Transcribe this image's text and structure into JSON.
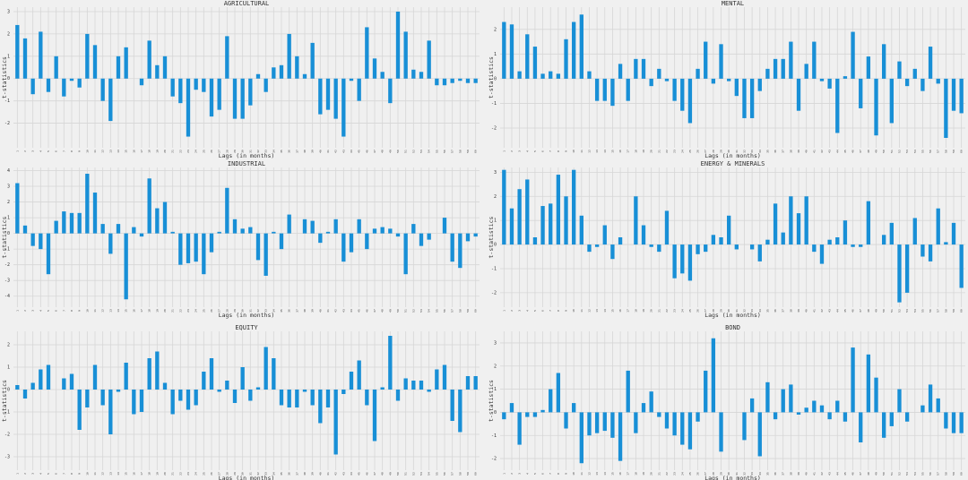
{
  "chart_data": [
    {
      "type": "bar",
      "title": "AGRICULTURAL",
      "xlabel": "Lags (in months)",
      "ylabel": "t-statistics",
      "color": "#188fd6",
      "grid": true,
      "categories": [
        1,
        2,
        3,
        4,
        5,
        6,
        7,
        8,
        9,
        10,
        11,
        12,
        13,
        14,
        15,
        16,
        17,
        18,
        19,
        20,
        21,
        22,
        23,
        24,
        25,
        26,
        27,
        28,
        29,
        30,
        31,
        32,
        33,
        34,
        35,
        36,
        37,
        38,
        39,
        40,
        41,
        42,
        43,
        44,
        45,
        46,
        47,
        48,
        49,
        50,
        51,
        52,
        53,
        54,
        55,
        56,
        57,
        58,
        59,
        60
      ],
      "values": [
        2.4,
        1.8,
        -0.7,
        2.1,
        -0.6,
        1.0,
        -0.8,
        -0.1,
        -0.4,
        2.0,
        1.5,
        -1.0,
        -1.9,
        1.0,
        1.4,
        0.0,
        -0.3,
        1.7,
        0.6,
        1.0,
        -0.8,
        -1.1,
        -2.6,
        -0.5,
        -0.6,
        -1.7,
        -1.4,
        1.9,
        -1.8,
        -1.8,
        -1.2,
        0.2,
        -0.6,
        0.5,
        0.6,
        2.0,
        1.0,
        0.2,
        1.6,
        -1.6,
        -1.4,
        -1.8,
        -2.6,
        -0.1,
        -1.0,
        2.3,
        0.9,
        0.3,
        -1.1,
        3.0,
        2.1,
        0.4,
        0.3,
        1.7,
        -0.3,
        -0.3,
        -0.2,
        -0.1,
        -0.2,
        -0.2
      ],
      "ylim": [
        -3.1,
        3.2
      ],
      "yticks": [
        -2,
        -1,
        0,
        1,
        2,
        3
      ]
    },
    {
      "type": "bar",
      "title": "MENTAL",
      "xlabel": "Lags (in months)",
      "ylabel": "t-statistics",
      "color": "#188fd6",
      "grid": true,
      "categories": [
        1,
        2,
        3,
        4,
        5,
        6,
        7,
        8,
        9,
        10,
        11,
        12,
        13,
        14,
        15,
        16,
        17,
        18,
        19,
        20,
        21,
        22,
        23,
        24,
        25,
        26,
        27,
        28,
        29,
        30,
        31,
        32,
        33,
        34,
        35,
        36,
        37,
        38,
        39,
        40,
        41,
        42,
        43,
        44,
        45,
        46,
        47,
        48,
        49,
        50,
        51,
        52,
        53,
        54,
        55,
        56,
        57,
        58,
        59,
        60
      ],
      "values": [
        2.3,
        2.2,
        0.3,
        1.8,
        1.3,
        0.2,
        0.3,
        0.2,
        1.6,
        2.3,
        2.6,
        0.3,
        -0.9,
        -0.9,
        -1.1,
        0.6,
        -0.9,
        0.8,
        0.8,
        -0.3,
        0.4,
        -0.1,
        -0.9,
        -1.3,
        -1.8,
        0.4,
        1.5,
        -0.2,
        1.4,
        -0.1,
        -0.7,
        -1.6,
        -1.6,
        -0.5,
        0.4,
        0.8,
        0.8,
        1.5,
        -1.3,
        0.6,
        1.5,
        -0.1,
        -0.4,
        -2.2,
        0.1,
        1.9,
        -1.2,
        0.9,
        -2.3,
        1.4,
        -1.8,
        0.7,
        -0.3,
        0.4,
        -0.5,
        1.3,
        -0.2,
        -2.4,
        -1.3,
        -1.4
      ],
      "ylim": [
        -2.8,
        2.9
      ],
      "yticks": [
        -2,
        -1,
        0,
        1,
        2
      ]
    },
    {
      "type": "bar",
      "title": "INDUSTRIAL",
      "xlabel": "Lags (in months)",
      "ylabel": "t-statistics",
      "color": "#188fd6",
      "grid": true,
      "categories": [
        1,
        2,
        3,
        4,
        5,
        6,
        7,
        8,
        9,
        10,
        11,
        12,
        13,
        14,
        15,
        16,
        17,
        18,
        19,
        20,
        21,
        22,
        23,
        24,
        25,
        26,
        27,
        28,
        29,
        30,
        31,
        32,
        33,
        34,
        35,
        36,
        37,
        38,
        39,
        40,
        41,
        42,
        43,
        44,
        45,
        46,
        47,
        48,
        49,
        50,
        51,
        52,
        53,
        54,
        55,
        56,
        57,
        58,
        59,
        60
      ],
      "values": [
        3.2,
        0.5,
        -0.8,
        -1.0,
        -2.6,
        0.8,
        1.4,
        1.3,
        1.3,
        3.8,
        2.6,
        0.6,
        -1.3,
        0.6,
        -4.2,
        0.4,
        -0.2,
        3.5,
        1.6,
        2.0,
        0.1,
        -2.0,
        -1.9,
        -1.8,
        -2.6,
        -1.2,
        0.1,
        2.9,
        0.9,
        0.3,
        0.4,
        -1.7,
        -2.7,
        0.1,
        -1.0,
        1.2,
        0.0,
        0.9,
        0.8,
        -0.6,
        0.1,
        0.9,
        -1.8,
        -1.2,
        0.9,
        -1.0,
        0.3,
        0.4,
        0.3,
        -0.2,
        -2.6,
        0.6,
        -0.8,
        -0.4,
        0.0,
        1.0,
        -1.8,
        -2.2,
        -0.5,
        -0.2
      ],
      "ylim": [
        -4.7,
        4.2
      ],
      "yticks": [
        -4,
        -3,
        -2,
        -1,
        0,
        1,
        2,
        3,
        4
      ]
    },
    {
      "type": "bar",
      "title": "ENERGY & MINERALS",
      "xlabel": "Lags (in months)",
      "ylabel": "t-statistics",
      "color": "#188fd6",
      "grid": true,
      "categories": [
        1,
        2,
        3,
        4,
        5,
        6,
        7,
        8,
        9,
        10,
        11,
        12,
        13,
        14,
        15,
        16,
        17,
        18,
        19,
        20,
        21,
        22,
        23,
        24,
        25,
        26,
        27,
        28,
        29,
        30,
        31,
        32,
        33,
        34,
        35,
        36,
        37,
        38,
        39,
        40,
        41,
        42,
        43,
        44,
        45,
        46,
        47,
        48,
        49,
        50,
        51,
        52,
        53,
        54,
        55,
        56,
        57,
        58,
        59,
        60
      ],
      "values": [
        3.1,
        1.5,
        2.3,
        2.7,
        0.3,
        1.6,
        1.7,
        2.9,
        2.0,
        3.1,
        1.2,
        -0.3,
        -0.1,
        0.8,
        -0.6,
        0.3,
        0.0,
        2.0,
        0.8,
        -0.1,
        -0.3,
        1.4,
        -1.4,
        -1.2,
        -1.5,
        -0.4,
        -0.3,
        0.4,
        0.3,
        1.2,
        -0.2,
        0.0,
        -0.2,
        -0.7,
        0.2,
        1.7,
        0.5,
        2.0,
        1.3,
        2.0,
        -0.3,
        -0.8,
        0.2,
        0.3,
        1.0,
        -0.1,
        -0.1,
        1.8,
        0.0,
        0.4,
        0.9,
        -2.4,
        -2.0,
        1.1,
        -0.5,
        -0.7,
        1.5,
        0.1,
        0.9,
        -1.8
      ],
      "ylim": [
        -2.6,
        3.2
      ],
      "yticks": [
        -2,
        -1,
        0,
        1,
        2,
        3
      ]
    },
    {
      "type": "bar",
      "title": "EQUITY",
      "xlabel": "Lags (in months)",
      "ylabel": "t-statistics",
      "color": "#188fd6",
      "grid": true,
      "categories": [
        1,
        2,
        3,
        4,
        5,
        6,
        7,
        8,
        9,
        10,
        11,
        12,
        13,
        14,
        15,
        16,
        17,
        18,
        19,
        20,
        21,
        22,
        23,
        24,
        25,
        26,
        27,
        28,
        29,
        30,
        31,
        32,
        33,
        34,
        35,
        36,
        37,
        38,
        39,
        40,
        41,
        42,
        43,
        44,
        45,
        46,
        47,
        48,
        49,
        50,
        51,
        52,
        53,
        54,
        55,
        56,
        57,
        58,
        59,
        60
      ],
      "values": [
        0.2,
        -0.4,
        0.3,
        0.9,
        1.1,
        0.0,
        0.5,
        0.7,
        -1.8,
        -0.8,
        1.1,
        -0.7,
        -2.0,
        -0.1,
        1.2,
        -1.1,
        -1.0,
        1.4,
        1.7,
        0.3,
        -1.1,
        -0.5,
        -0.9,
        -0.7,
        0.8,
        1.4,
        -0.1,
        0.4,
        -0.6,
        1.0,
        -0.5,
        0.1,
        1.9,
        1.4,
        -0.7,
        -0.8,
        -0.8,
        -0.1,
        -0.7,
        -1.5,
        -0.8,
        -2.9,
        -0.2,
        0.8,
        1.3,
        -0.7,
        -2.3,
        0.1,
        2.4,
        -0.5,
        0.5,
        0.4,
        0.4,
        -0.1,
        0.9,
        1.1,
        -1.4,
        -1.9,
        0.6,
        0.6
      ],
      "ylim": [
        -3.6,
        2.6
      ],
      "yticks": [
        -3,
        -2,
        -1,
        0,
        1,
        2
      ]
    },
    {
      "type": "bar",
      "title": "BOND",
      "xlabel": "Lags (in months)",
      "ylabel": "t-statistics",
      "color": "#188fd6",
      "grid": true,
      "categories": [
        1,
        2,
        3,
        4,
        5,
        6,
        7,
        8,
        9,
        10,
        11,
        12,
        13,
        14,
        15,
        16,
        17,
        18,
        19,
        20,
        21,
        22,
        23,
        24,
        25,
        26,
        27,
        28,
        29,
        30,
        31,
        32,
        33,
        34,
        35,
        36,
        37,
        38,
        39,
        40,
        41,
        42,
        43,
        44,
        45,
        46,
        47,
        48,
        49,
        50,
        51,
        52,
        53,
        54,
        55,
        56,
        57,
        58,
        59,
        60
      ],
      "values": [
        -0.3,
        0.4,
        -1.4,
        -0.2,
        -0.2,
        0.1,
        1.0,
        1.7,
        -0.7,
        0.4,
        -2.2,
        -1.0,
        -0.9,
        -0.8,
        -1.1,
        -2.1,
        1.8,
        -0.9,
        0.4,
        0.9,
        -0.2,
        -0.7,
        -1.0,
        -1.4,
        -1.6,
        -0.4,
        1.8,
        3.2,
        -1.7,
        0.0,
        0.0,
        -1.2,
        0.6,
        -1.9,
        1.3,
        -0.3,
        1.0,
        1.2,
        -0.1,
        0.2,
        0.5,
        0.3,
        -0.3,
        0.5,
        -0.4,
        2.8,
        -1.3,
        2.5,
        1.5,
        -1.1,
        -0.6,
        1.0,
        -0.4,
        0.0,
        0.3,
        1.2,
        0.6,
        -0.7,
        -0.9,
        -0.9
      ],
      "ylim": [
        -2.5,
        3.5
      ],
      "yticks": [
        -2,
        -1,
        0,
        1,
        2,
        3
      ]
    }
  ]
}
